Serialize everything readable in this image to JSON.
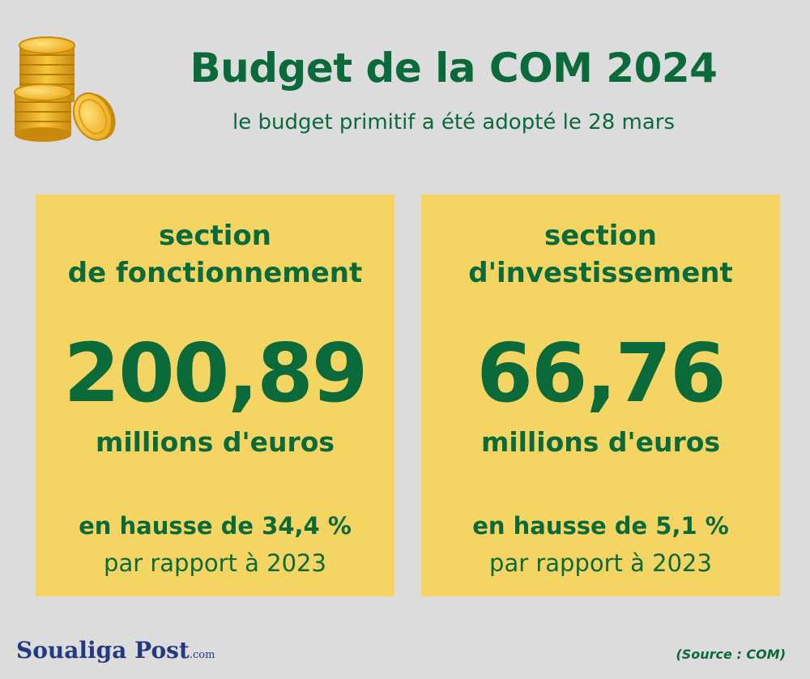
{
  "header": {
    "title": "Budget de la COM 2024",
    "subtitle": "le budget primitif a été adopté le 28 mars",
    "illustration_icon": "coins-icon"
  },
  "cards": [
    {
      "heading_line1": "section",
      "heading_line2": "de fonctionnement",
      "value": "200,89",
      "unit": "millions d'euros",
      "change": "en hausse de 34,4 %",
      "comparison": "par rapport à 2023"
    },
    {
      "heading_line1": "section",
      "heading_line2": "d'investissement",
      "value": "66,76",
      "unit": "millions d'euros",
      "change": "en hausse de 5,1 %",
      "comparison": "par rapport à 2023"
    }
  ],
  "footer": {
    "brand_name": "Soualiga Post",
    "brand_suffix": ".com",
    "source": "(Source : COM)"
  },
  "colors": {
    "background": "#dcdcdc",
    "card": "#f4d563",
    "text_green": "#0b6a3a",
    "brand_blue": "#233b7e",
    "coin_gold": "#f2b51d"
  }
}
